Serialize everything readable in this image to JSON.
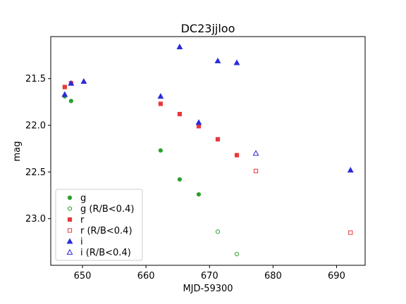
{
  "chart_data": {
    "type": "scatter",
    "title": "DC23jjloo",
    "xlabel": "MJD-59300",
    "ylabel": "mag",
    "xlim": [
      645.0,
      694.5
    ],
    "ylim": [
      23.5,
      21.05
    ],
    "y_inverted": true,
    "xticks": [
      650,
      660,
      670,
      680,
      690
    ],
    "yticks": [
      21.5,
      22.0,
      22.5,
      23.0
    ],
    "xtick_labels": [
      "650",
      "660",
      "670",
      "680",
      "690"
    ],
    "ytick_labels": [
      "21.5",
      "22.0",
      "22.5",
      "23.0"
    ],
    "grid": false,
    "legend_position": "lower-left",
    "series": [
      {
        "name": "g",
        "color": "#2ca02c",
        "marker": "circle",
        "filled": true,
        "points": [
          [
            647.2,
            21.69
          ],
          [
            648.2,
            21.74
          ],
          [
            662.3,
            22.27
          ],
          [
            665.3,
            22.58
          ],
          [
            668.3,
            22.74
          ]
        ]
      },
      {
        "name": "g (R/B<0.4)",
        "color": "#2ca02c",
        "marker": "circle",
        "filled": false,
        "points": [
          [
            671.3,
            23.14
          ],
          [
            674.3,
            23.38
          ]
        ]
      },
      {
        "name": "r",
        "color": "#e8383d",
        "marker": "square",
        "filled": true,
        "points": [
          [
            647.2,
            21.59
          ],
          [
            648.2,
            21.55
          ],
          [
            662.3,
            21.77
          ],
          [
            665.3,
            21.88
          ],
          [
            668.3,
            22.01
          ],
          [
            671.3,
            22.15
          ],
          [
            674.3,
            22.32
          ]
        ]
      },
      {
        "name": "r (R/B<0.4)",
        "color": "#e8383d",
        "marker": "square",
        "filled": false,
        "points": [
          [
            677.3,
            22.49
          ],
          [
            692.2,
            23.15
          ]
        ]
      },
      {
        "name": "i",
        "color": "#2b2bd9",
        "marker": "triangle",
        "filled": true,
        "points": [
          [
            647.2,
            21.67
          ],
          [
            648.2,
            21.55
          ],
          [
            650.2,
            21.53
          ],
          [
            662.3,
            21.69
          ],
          [
            665.3,
            21.16
          ],
          [
            668.3,
            21.97
          ],
          [
            671.3,
            21.31
          ],
          [
            674.3,
            21.33
          ],
          [
            692.2,
            22.48
          ]
        ]
      },
      {
        "name": "i (R/B<0.4)",
        "color": "#2b2bd9",
        "marker": "triangle",
        "filled": false,
        "points": [
          [
            677.3,
            22.3
          ]
        ]
      }
    ]
  }
}
